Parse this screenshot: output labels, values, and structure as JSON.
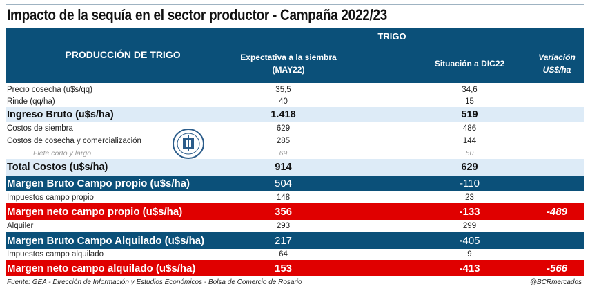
{
  "title": "Impacto de la sequía en el sector productor - Campaña 2022/23",
  "header": {
    "group": "TRIGO",
    "row_label": "PRODUCCIÓN DE TRIGO",
    "col1_line1": "Expectativa a la siembra",
    "col1_line2": "(MAY22)",
    "col2": "Situación a DIC22",
    "col3_line1": "Variación",
    "col3_line2": "US$/ha"
  },
  "rows": [
    {
      "label": "Precio cosecha (u$s/qq)",
      "v1": "35,5",
      "v2": "34,6",
      "v3": ""
    },
    {
      "label": "Rinde (qq/ha)",
      "v1": "40",
      "v2": "15",
      "v3": ""
    },
    {
      "label": "Ingreso Bruto (u$s/ha)",
      "v1": "1.418",
      "v2": "519",
      "v3": ""
    },
    {
      "label": "Costos de siembra",
      "v1": "629",
      "v2": "486",
      "v3": ""
    },
    {
      "label": "Costos de cosecha y comercialización",
      "v1": "285",
      "v2": "144",
      "v3": ""
    },
    {
      "label": "Flete corto y largo",
      "v1": "69",
      "v2": "50",
      "v3": ""
    },
    {
      "label": "Total Costos (u$s/ha)",
      "v1": "914",
      "v2": "629",
      "v3": ""
    },
    {
      "label": "Margen Bruto Campo propio (u$s/ha)",
      "v1": "504",
      "v2": "-110",
      "v3": ""
    },
    {
      "label": "Impuestos campo propio",
      "v1": "148",
      "v2": "23",
      "v3": ""
    },
    {
      "label": "Margen neto campo propio (u$s/ha)",
      "v1": "356",
      "v2": "-133",
      "v3": "-489"
    },
    {
      "label": "Alquiler",
      "v1": "293",
      "v2": "299",
      "v3": ""
    },
    {
      "label": "Margen Bruto Campo Alquilado (u$s/ha)",
      "v1": "217",
      "v2": "-405",
      "v3": ""
    },
    {
      "label": "Impuestos campo alquilado",
      "v1": "64",
      "v2": "9",
      "v3": ""
    },
    {
      "label": "Margen neto campo alquilado (u$s/ha)",
      "v1": "153",
      "v2": "-413",
      "v3": "-566"
    }
  ],
  "footer": {
    "source": "Fuente: GEA - Dirección de Información y Estudios Económicos - Bolsa de Comercio de Rosario",
    "handle": "@BCRmercados"
  },
  "logo": {
    "text": "Bolsa de Comercio de Rosario"
  },
  "colors": {
    "header": "#0b5079",
    "light": "#ddebf7",
    "red": "#e00000"
  }
}
